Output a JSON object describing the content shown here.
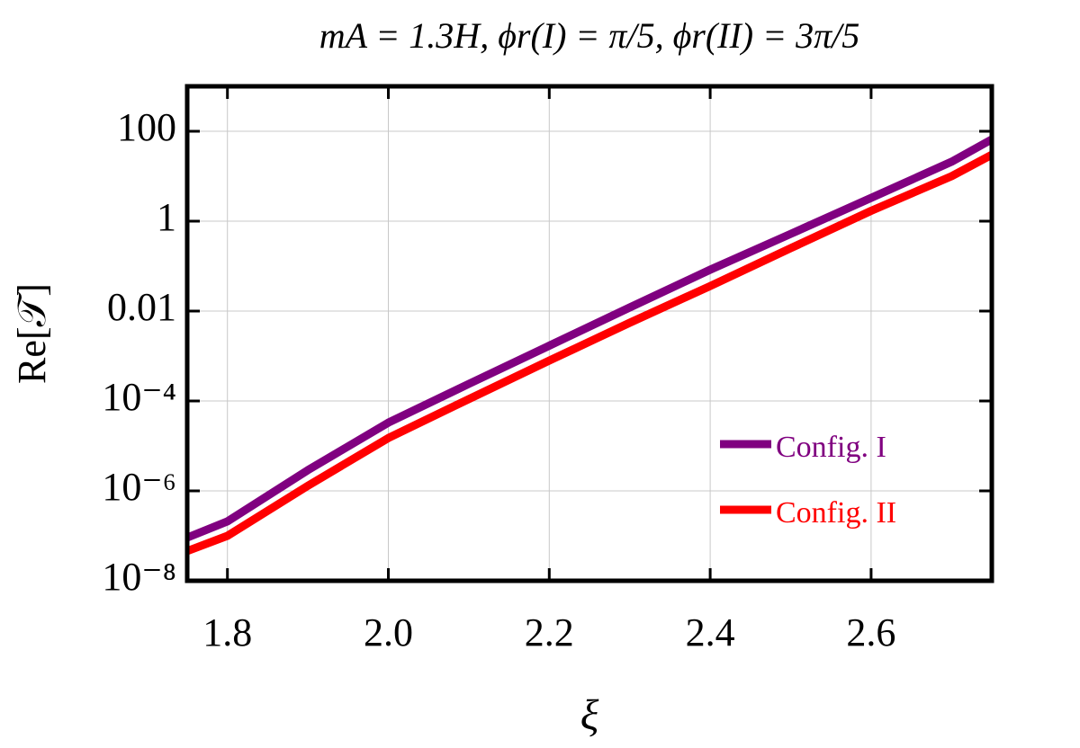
{
  "chart_data": {
    "type": "line",
    "title": "mA = 1.3H, ϕr(I) = π/5, ϕr(II) = 3π/5",
    "x_label": "ξ",
    "y_label": "Re[𝒯]",
    "x": [
      1.75,
      1.8,
      1.9,
      2.0,
      2.1,
      2.2,
      2.3,
      2.4,
      2.5,
      2.6,
      2.7,
      2.75
    ],
    "series": [
      {
        "name": "Config. I",
        "color": "#800080",
        "values": [
          9.1e-08,
          2.1e-07,
          2.9e-06,
          3.3e-05,
          0.00024,
          0.0017,
          0.012,
          0.083,
          0.52,
          3.3,
          21,
          66
        ]
      },
      {
        "name": "Config. II",
        "color": "#ff0000",
        "values": [
          4.6e-08,
          1e-07,
          1.3e-06,
          1.5e-05,
          0.00011,
          0.00079,
          0.0055,
          0.036,
          0.25,
          1.7,
          10,
          30
        ]
      }
    ],
    "xlim": [
      1.75,
      2.75
    ],
    "xticks": [
      1.8,
      {
        "value": 2,
        "label": "2.0"
      },
      2.2,
      2.4,
      2.6
    ],
    "ylim": [
      1e-08,
      1000
    ],
    "yticks": [
      {
        "value": 1e-08,
        "label": "10⁻⁸"
      },
      {
        "value": 1e-06,
        "label": "10⁻⁶"
      },
      {
        "value": 0.0001,
        "label": "10⁻⁴"
      },
      0.01,
      1,
      100
    ],
    "y_scale": "log",
    "grid": true,
    "legend_position": "lower right"
  }
}
